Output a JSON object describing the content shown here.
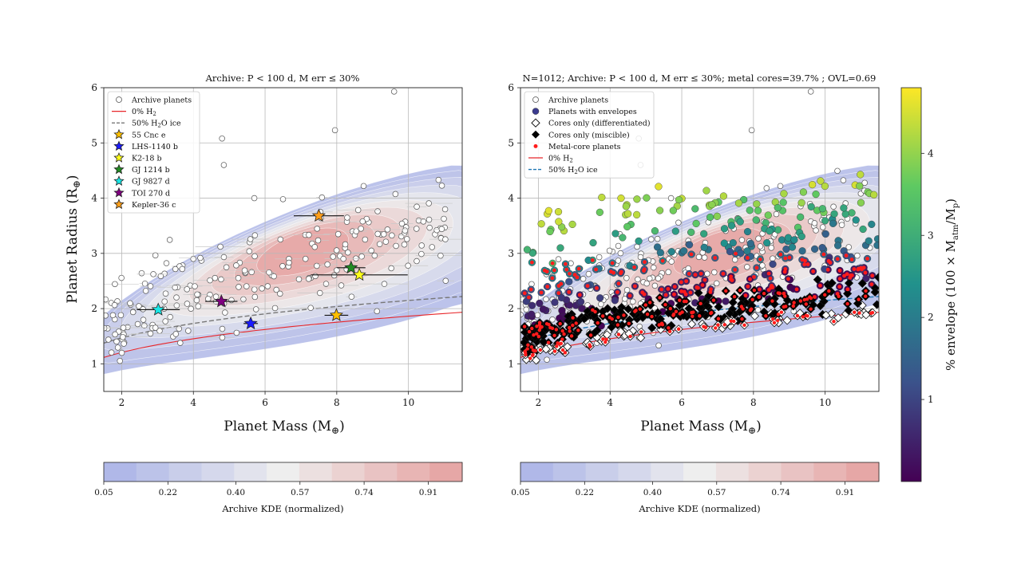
{
  "colors": {
    "kde_low": "#b0b8e8",
    "kde_mid": "#eeeeee",
    "kde_high": "#e6a7a6",
    "pure_rock": "#e8262a",
    "water_ice": "#777777",
    "water_ice_right": "#1f77b4",
    "metal_core": "#ff1c1c",
    "viridis": [
      "#440154",
      "#3b528b",
      "#21918c",
      "#5ec962",
      "#fde725"
    ]
  },
  "chart_data": [
    {
      "type": "scatter",
      "title": "Archive: P < 100 d, M err ≤ 30%",
      "xlabel": "Planet Mass (M",
      "xlabel_sub": "⊕",
      "xlabel_close": ")",
      "ylabel": "Planet Radius (R",
      "ylabel_sub": "⊕",
      "ylabel_close": ")",
      "xlim": [
        1.5,
        11.5
      ],
      "ylim": [
        0.5,
        6
      ],
      "xticks": [
        "2",
        "4",
        "6",
        "8",
        "10"
      ],
      "yticks": [
        "1",
        "2",
        "3",
        "4",
        "5",
        "6"
      ],
      "grid": true,
      "legend_position": "top-left",
      "legend": [
        {
          "kind": "circle",
          "label": "Archive planets"
        },
        {
          "kind": "line-red",
          "label": "0% H",
          "sub": "2"
        },
        {
          "kind": "line-dash",
          "label": "50% H",
          "sub": "2",
          "tail": "O ice"
        },
        {
          "kind": "star",
          "color": "#ffbf00",
          "label": "55 Cnc e"
        },
        {
          "kind": "star",
          "color": "#1a1aff",
          "label": "LHS-1140 b"
        },
        {
          "kind": "star",
          "color": "#ffff1a",
          "label": "K2-18 b"
        },
        {
          "kind": "star",
          "color": "#228b22",
          "label": "GJ 1214 b"
        },
        {
          "kind": "star",
          "color": "#19e6e6",
          "label": "GJ 9827 d"
        },
        {
          "kind": "star",
          "color": "#800080",
          "label": "TOI 270 d"
        },
        {
          "kind": "star",
          "color": "#ff9f1a",
          "label": "Kepler-36 c"
        }
      ],
      "highlight_planets": [
        {
          "name": "Kepler-36 c",
          "mass": 7.5,
          "radius": 3.68,
          "merr": 0.7,
          "color": "#ff9f1a"
        },
        {
          "name": "GJ 1214 b",
          "mass": 8.4,
          "radius": 2.74,
          "merr": 0.4,
          "color": "#228b22"
        },
        {
          "name": "K2-18 b",
          "mass": 8.63,
          "radius": 2.61,
          "merr": 1.35,
          "color": "#ffff1a"
        },
        {
          "name": "GJ 9827 d",
          "mass": 3.02,
          "radius": 1.98,
          "merr": 0.6,
          "color": "#19e6e6"
        },
        {
          "name": "TOI 270 d",
          "mass": 4.78,
          "radius": 2.13,
          "merr": 0.45,
          "color": "#800080"
        },
        {
          "name": "LHS-1140 b",
          "mass": 5.6,
          "radius": 1.73,
          "merr": 0.2,
          "color": "#1a1aff"
        },
        {
          "name": "55 Cnc e",
          "mass": 7.99,
          "radius": 1.88,
          "merr": 0.33,
          "color": "#ffbf00"
        }
      ],
      "colorbar": {
        "label": "Archive KDE (normalized)",
        "ticks": [
          "0.05",
          "0.22",
          "0.40",
          "0.57",
          "0.74",
          "0.91"
        ],
        "range": [
          0.05,
          1.0
        ]
      }
    },
    {
      "type": "scatter",
      "title": "N=1012; Archive: P < 100 d, M err ≤ 30%; metal cores=39.7%  ; OVL=0.69",
      "xlabel": "Planet Mass (M",
      "xlabel_sub": "⊕",
      "xlabel_close": ")",
      "xlim": [
        1.5,
        11.5
      ],
      "ylim": [
        0.5,
        6
      ],
      "xticks": [
        "2",
        "4",
        "6",
        "8",
        "10"
      ],
      "yticks": [
        "1",
        "2",
        "3",
        "4",
        "5",
        "6"
      ],
      "grid": true,
      "legend_position": "top-left",
      "legend": [
        {
          "kind": "circle",
          "label": "Archive planets"
        },
        {
          "kind": "filled-circle",
          "label": "Planets with envelopes"
        },
        {
          "kind": "diamond-open",
          "label": "Cores only (differentiated)"
        },
        {
          "kind": "diamond-black",
          "label": "Cores only (miscible)"
        },
        {
          "kind": "dot-red",
          "label": "Metal-core planets"
        },
        {
          "kind": "line-red",
          "label": "0% H",
          "sub": "2"
        },
        {
          "kind": "line-blue-dash",
          "label": "50% H",
          "sub": "2",
          "tail": "O ice"
        }
      ],
      "n_models": 1012,
      "metal_core_fraction_percent": 39.7,
      "overlap": 0.69,
      "colorbar": {
        "label": "Archive KDE (normalized)",
        "ticks": [
          "0.05",
          "0.22",
          "0.40",
          "0.57",
          "0.74",
          "0.91"
        ],
        "range": [
          0.05,
          1.0
        ]
      },
      "envelope_colorbar": {
        "label": "% envelope (100 × M",
        "label_sub1": "atm",
        "label_mid": "/M",
        "label_sub2": "p",
        "label_close": ")",
        "ticks": [
          "1",
          "2",
          "3",
          "4"
        ],
        "range": [
          0,
          4.8
        ],
        "colormap": "viridis"
      }
    }
  ]
}
